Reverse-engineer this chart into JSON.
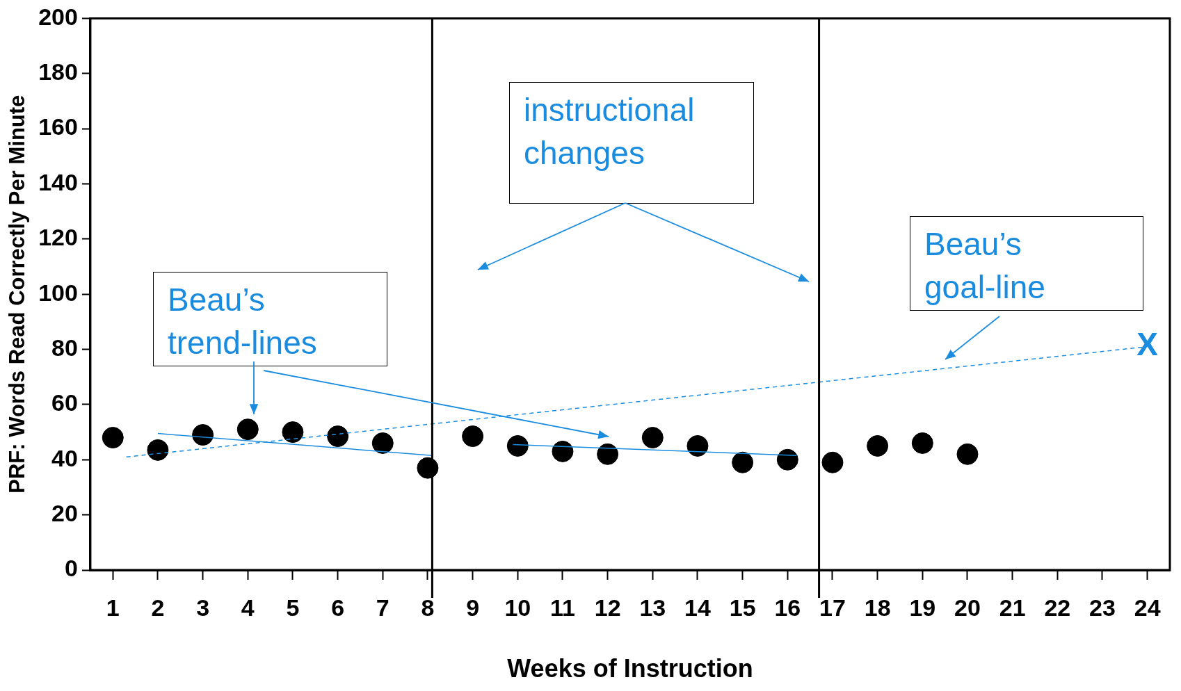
{
  "chart_data": {
    "type": "scatter",
    "xlabel": "Weeks of Instruction",
    "ylabel": "PRF: Words Read Correctly Per Minute",
    "xlim": [
      0.5,
      24.5
    ],
    "xticks": [
      1,
      2,
      3,
      4,
      5,
      6,
      7,
      8,
      9,
      10,
      11,
      12,
      13,
      14,
      15,
      16,
      17,
      18,
      19,
      20,
      21,
      22,
      23,
      24
    ],
    "ylim": [
      0,
      200
    ],
    "yticks": [
      0,
      20,
      40,
      60,
      80,
      100,
      120,
      140,
      160,
      180,
      200
    ],
    "grid": false,
    "legend": false,
    "series": [
      {
        "type": "scatter",
        "color": "#000000",
        "marker": "circle",
        "x": [
          1,
          2,
          3,
          4,
          5,
          6,
          7,
          8,
          9,
          10,
          11,
          12,
          13,
          14,
          15,
          16,
          17,
          18,
          19,
          20
        ],
        "values": [
          48,
          43.5,
          49,
          51,
          50,
          48.5,
          46,
          37,
          48.5,
          45,
          43,
          42,
          48,
          45,
          39,
          40,
          39,
          45,
          46,
          42
        ]
      },
      {
        "type": "line",
        "color": "#1a8ce0",
        "marker": "none",
        "line_style": "solid",
        "x": [
          2,
          8.1
        ],
        "values": [
          49.5,
          41.5
        ]
      },
      {
        "type": "line",
        "color": "#1a8ce0",
        "marker": "none",
        "line_style": "solid",
        "x": [
          9.9,
          16.2
        ],
        "values": [
          45.5,
          41.5
        ]
      },
      {
        "type": "line",
        "color": "#1a8ce0",
        "marker": "none",
        "line_style": "dashed",
        "x": [
          1.3,
          24
        ],
        "values": [
          41,
          81
        ]
      }
    ],
    "ref_lines": [
      {
        "axis": "x",
        "value": 8.1,
        "color": "#000000"
      },
      {
        "axis": "x",
        "value": 16.7,
        "color": "#000000"
      }
    ],
    "annotations": [
      "instructional changes",
      "Beau’s trend-lines",
      "Beau’s goal-line",
      {
        "text": "X",
        "x": 24,
        "y": 81
      }
    ]
  }
}
